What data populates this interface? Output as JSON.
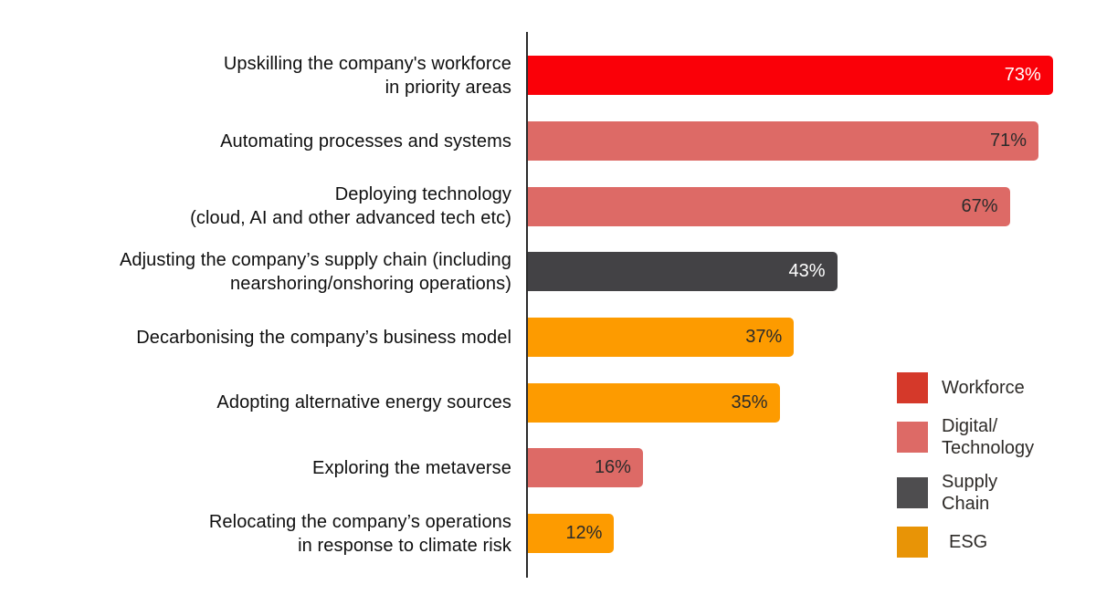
{
  "chart_data": {
    "type": "bar",
    "orientation": "horizontal",
    "title": "",
    "xlabel": "",
    "ylabel": "",
    "xlim": [
      0,
      79
    ],
    "grid": false,
    "axis_color": "#2b2b2b",
    "categories": [
      "Upskilling the company's workforce in priority areas",
      "Automating processes and systems",
      "Deploying technology (cloud, AI and other advanced tech etc)",
      "Adjusting the company’s supply chain (including nearshoring/onshoring operations)",
      "Decarbonising the company’s business model",
      "Adopting alternative energy sources",
      "Exploring the metaverse",
      "Relocating the company’s operations in response to climate risk"
    ],
    "series_colors": {
      "Workforce": "#fa0008",
      "Digital/Technology": "#dd6a66",
      "Supply Chain": "#434245",
      "ESG": "#fd9b00"
    },
    "rows": [
      {
        "label_lines": [
          "Upskilling the company's workforce",
          "in priority areas"
        ],
        "value": 73,
        "value_label": "73%",
        "category": "Workforce",
        "value_label_color": "#ffffff"
      },
      {
        "label_lines": [
          "Automating processes and systems"
        ],
        "value": 71,
        "value_label": "71%",
        "category": "Digital/Technology",
        "value_label_color": "#2b2b2b"
      },
      {
        "label_lines": [
          "Deploying technology",
          "(cloud, AI and other advanced tech etc)"
        ],
        "value": 67,
        "value_label": "67%",
        "category": "Digital/Technology",
        "value_label_color": "#2b2b2b"
      },
      {
        "label_lines": [
          "Adjusting the company’s supply chain (including",
          "nearshoring/onshoring operations)"
        ],
        "value": 43,
        "value_label": "43%",
        "category": "Supply Chain",
        "value_label_color": "#ffffff"
      },
      {
        "label_lines": [
          "Decarbonising the company’s business model"
        ],
        "value": 37,
        "value_label": "37%",
        "category": "ESG",
        "value_label_color": "#2b2b2b"
      },
      {
        "label_lines": [
          "Adopting alternative energy sources"
        ],
        "value": 35,
        "value_label": "35%",
        "category": "ESG",
        "value_label_color": "#2b2b2b"
      },
      {
        "label_lines": [
          "Exploring the metaverse"
        ],
        "value": 16,
        "value_label": "16%",
        "category": "Digital/Technology",
        "value_label_color": "#2b2b2b"
      },
      {
        "label_lines": [
          "Relocating the company’s operations",
          "in response to climate risk"
        ],
        "value": 12,
        "value_label": "12%",
        "category": "ESG",
        "value_label_color": "#2b2b2b"
      }
    ],
    "legend": {
      "position": "bottom-right",
      "items": [
        {
          "label_lines": [
            "Workforce"
          ],
          "color": "#d5392a"
        },
        {
          "label_lines": [
            "Digital/",
            "Technology"
          ],
          "color": "#dd6a66"
        },
        {
          "label_lines": [
            "Supply",
            "Chain"
          ],
          "color": "#4e4d4f"
        },
        {
          "label_lines": [
            "ESG"
          ],
          "color": "#e89406"
        }
      ]
    }
  }
}
